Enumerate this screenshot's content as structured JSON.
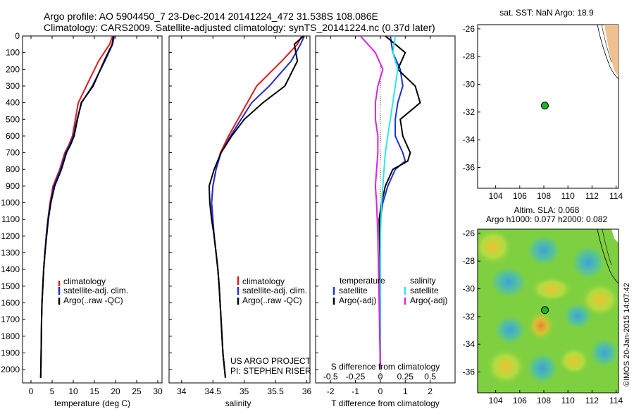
{
  "title_line1": "Argo profile: AO 5904450_7 23-Dec-2014 20141224_472 31.538S 108.086E",
  "title_line2": "Climatology: CARS2009. Satellite-adjusted climatology: synTS_20141224.nc (0.37d later)",
  "colors": {
    "climatology": "#e41a1c",
    "satellite": "#1f2fd6",
    "argo": "#000000",
    "sat_salinity": "#2ee6e6",
    "argo_salinity": "#e020e0",
    "float_marker": "#22b422"
  },
  "chart_data": [
    {
      "type": "line",
      "panel": "temperature",
      "xlabel": "temperature (deg C)",
      "xlim": [
        -2,
        31
      ],
      "ylim": [
        0,
        2080
      ],
      "y_inverted": true,
      "xticks": [
        0,
        5,
        10,
        15,
        20,
        25,
        30
      ],
      "yticks": [
        0,
        100,
        200,
        300,
        400,
        500,
        600,
        700,
        800,
        900,
        1000,
        1100,
        1200,
        1300,
        1400,
        1500,
        1600,
        1700,
        1800,
        1900,
        2000
      ],
      "legend": [
        "climatology",
        "satellite-adj. clim.",
        "Argo(..raw -QC)"
      ],
      "series": [
        {
          "name": "climatology",
          "x": [
            19.3,
            18.6,
            16.0,
            13.1,
            11.2,
            10.5,
            9.8,
            9.0,
            8.0,
            6.8,
            5.2,
            4.5,
            4.0,
            3.6,
            3.3,
            3.0,
            2.8,
            2.6,
            2.5,
            2.4,
            2.3
          ],
          "y": [
            0,
            50,
            150,
            300,
            400,
            500,
            600,
            650,
            700,
            800,
            900,
            1000,
            1100,
            1200,
            1300,
            1400,
            1500,
            1600,
            1700,
            1900,
            2050
          ]
        },
        {
          "name": "satellite-adj. clim.",
          "x": [
            19.7,
            19.3,
            17.5,
            14.5,
            12.0,
            10.9,
            10.0,
            9.2,
            8.2,
            7.0,
            5.4,
            4.6,
            4.0,
            3.6,
            3.3,
            3.0,
            2.8,
            2.6,
            2.5,
            2.4,
            2.3
          ],
          "y": [
            0,
            50,
            150,
            300,
            400,
            500,
            600,
            650,
            700,
            800,
            900,
            1000,
            1100,
            1200,
            1300,
            1400,
            1500,
            1600,
            1700,
            1900,
            2050
          ]
        },
        {
          "name": "Argo(..raw -QC)",
          "x": [
            19.5,
            19.2,
            17.3,
            14.7,
            11.9,
            11.0,
            10.2,
            9.4,
            8.4,
            7.2,
            5.6,
            4.7,
            4.1,
            3.7,
            3.3,
            3.0,
            2.8,
            2.6,
            2.5,
            2.4,
            2.3
          ],
          "y": [
            0,
            50,
            150,
            300,
            400,
            500,
            600,
            650,
            700,
            800,
            900,
            1000,
            1100,
            1200,
            1300,
            1400,
            1500,
            1600,
            1700,
            1900,
            2050
          ]
        }
      ]
    },
    {
      "type": "line",
      "panel": "salinity",
      "xlabel": "salinity",
      "xlim": [
        33.8,
        36.05
      ],
      "ylim": [
        0,
        2080
      ],
      "y_inverted": true,
      "xticks": [
        34,
        34.5,
        35,
        35.5,
        36
      ],
      "legend": [
        "climatology",
        "satellite-adj. clim.",
        "Argo(..raw -QC)"
      ],
      "annotation_line1": "US ARGO PROJECT",
      "annotation_line2": "PI: STEPHEN RISER",
      "series": [
        {
          "name": "climatology",
          "x": [
            35.92,
            35.85,
            35.6,
            35.2,
            35.05,
            34.9,
            34.75,
            34.62,
            34.55,
            34.5,
            34.48,
            34.5,
            34.52,
            34.55,
            34.58,
            34.6,
            34.63,
            34.66,
            34.7
          ],
          "y": [
            0,
            50,
            150,
            300,
            400,
            500,
            600,
            700,
            800,
            900,
            1000,
            1100,
            1200,
            1300,
            1400,
            1500,
            1700,
            1900,
            2050
          ]
        },
        {
          "name": "satellite-adj. clim.",
          "x": [
            35.96,
            35.9,
            35.75,
            35.4,
            35.12,
            34.95,
            34.78,
            34.63,
            34.55,
            34.5,
            34.48,
            34.5,
            34.52,
            34.55,
            34.58,
            34.6,
            34.63,
            34.66,
            34.7
          ],
          "y": [
            0,
            50,
            150,
            300,
            400,
            500,
            600,
            700,
            800,
            900,
            1000,
            1100,
            1200,
            1300,
            1400,
            1500,
            1700,
            1900,
            2050
          ]
        },
        {
          "name": "Argo(..raw -QC)",
          "x": [
            35.95,
            35.8,
            35.85,
            35.65,
            35.3,
            35.0,
            34.8,
            34.63,
            34.52,
            34.44,
            34.45,
            34.48,
            34.52,
            34.55,
            34.58,
            34.6,
            34.63,
            34.66,
            34.7
          ],
          "y": [
            0,
            50,
            150,
            300,
            400,
            500,
            600,
            700,
            800,
            900,
            1000,
            1100,
            1200,
            1300,
            1400,
            1500,
            1700,
            1900,
            2050
          ]
        }
      ]
    },
    {
      "type": "line",
      "panel": "difference",
      "xlabel": "T difference from climatology",
      "xlabel_top": "S difference from climatology",
      "xlim": [
        -2.6,
        3.0
      ],
      "ylim": [
        0,
        2080
      ],
      "y_inverted": true,
      "xticks": [
        -2,
        -1,
        0,
        1,
        2
      ],
      "s_ticks": [
        "-0.5",
        "-0.25",
        "0",
        "0.25",
        "0.5"
      ],
      "s_tick_positions": [
        -2,
        -1,
        0,
        1,
        2
      ],
      "legend_group1": "temperature",
      "legend_group2": "salinity",
      "legend": [
        "satellite",
        "Argo(-adj)",
        "satellite",
        "Argo(-adj)"
      ],
      "series": [
        {
          "name": "temperature satellite",
          "x": [
            0.4,
            0.5,
            0.8,
            0.9,
            0.7,
            0.6,
            0.6,
            0.9,
            1.0,
            0.6,
            0.3,
            0.1,
            0.0,
            0.0,
            0.0,
            0.0
          ],
          "y": [
            0,
            100,
            200,
            300,
            400,
            500,
            600,
            700,
            750,
            800,
            900,
            1000,
            1100,
            1300,
            1600,
            2000
          ]
        },
        {
          "name": "temperature Argo(-adj)",
          "x": [
            0.2,
            1.0,
            0.7,
            1.4,
            1.6,
            0.8,
            0.9,
            1.2,
            1.1,
            0.5,
            0.2,
            0.05,
            -0.05,
            -0.02,
            0.0,
            0.0
          ],
          "y": [
            0,
            100,
            200,
            300,
            400,
            500,
            600,
            700,
            750,
            800,
            900,
            1000,
            1100,
            1300,
            1600,
            2000
          ]
        },
        {
          "name": "salinity satellite",
          "x": [
            0.6,
            0.5,
            0.7,
            0.6,
            0.5,
            0.4,
            0.3,
            0.2,
            0.15,
            0.1,
            0.05,
            0.0,
            0.0,
            0.0
          ],
          "y": [
            0,
            100,
            200,
            300,
            400,
            500,
            600,
            700,
            800,
            900,
            1000,
            1200,
            1600,
            2000
          ]
        },
        {
          "name": "salinity Argo(-adj)",
          "x": [
            -0.8,
            -0.2,
            0.1,
            -0.1,
            -0.2,
            -0.2,
            -0.1,
            -0.1,
            -0.15,
            -0.2,
            -0.15,
            -0.1,
            -0.05,
            0.0
          ],
          "y": [
            0,
            100,
            200,
            300,
            400,
            500,
            600,
            700,
            800,
            900,
            1000,
            1200,
            1600,
            2000
          ]
        }
      ]
    },
    {
      "type": "scatter",
      "panel": "sst-map",
      "title": "sat. SST: NaN Argo: 18.9",
      "xlim": [
        102.5,
        114.2
      ],
      "ylim": [
        -37.5,
        -25.7
      ],
      "xticks": [
        104,
        106,
        108,
        110,
        112,
        114
      ],
      "yticks": [
        -26,
        -28,
        -30,
        -32,
        -34,
        -36
      ],
      "float_position": [
        108.086,
        -31.538
      ]
    },
    {
      "type": "heatmap",
      "panel": "sla-map",
      "title_line1": "Altim. SLA: 0.068",
      "title_line2": "Argo h1000: 0.077 h2000: 0.082",
      "xlim": [
        102.5,
        114.2
      ],
      "ylim": [
        -37.5,
        -25.7
      ],
      "xticks": [
        104,
        106,
        108,
        110,
        112,
        114
      ],
      "yticks": [
        -26,
        -28,
        -30,
        -32,
        -34,
        -36
      ],
      "float_position": [
        108.086,
        -31.538
      ]
    }
  ],
  "footer_stamp": "©IMOS 20-Jan-2015 14:07:42"
}
